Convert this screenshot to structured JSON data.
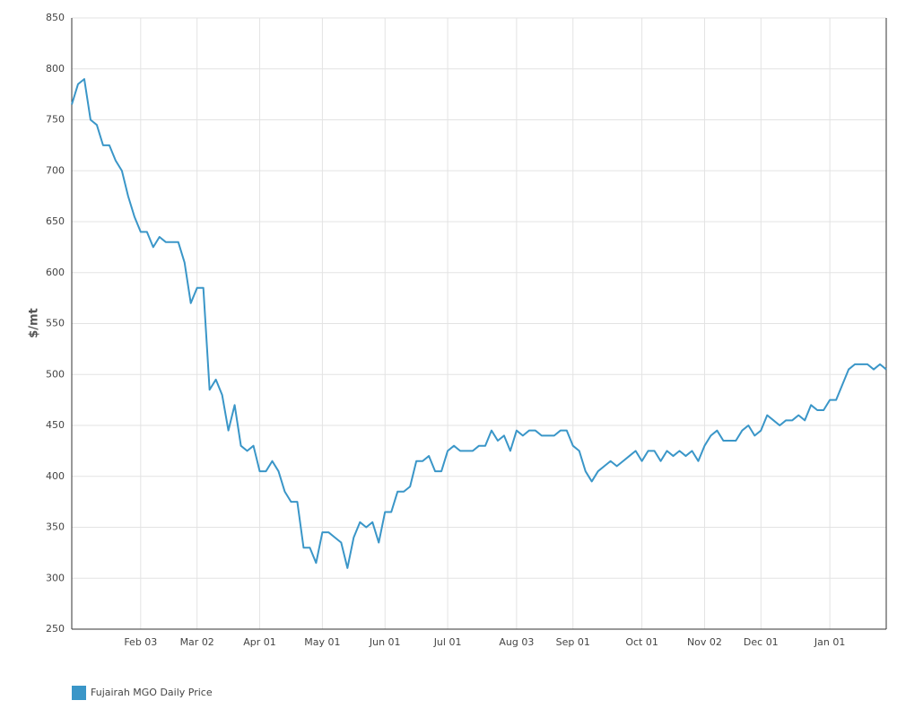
{
  "chart_data": {
    "type": "line",
    "y_label": "$/mt",
    "categories": [
      null,
      null,
      null,
      null,
      null,
      null,
      null,
      null,
      null,
      null,
      null,
      "Feb 03",
      null,
      null,
      null,
      null,
      null,
      null,
      null,
      null,
      "Mar 02",
      null,
      null,
      null,
      null,
      null,
      null,
      null,
      null,
      null,
      "Apr 01",
      null,
      null,
      null,
      null,
      null,
      null,
      null,
      null,
      null,
      "May 01",
      null,
      null,
      null,
      null,
      null,
      null,
      null,
      null,
      null,
      "Jun 01",
      null,
      null,
      null,
      null,
      null,
      null,
      null,
      null,
      null,
      "Jul 01",
      null,
      null,
      null,
      null,
      null,
      null,
      null,
      null,
      null,
      null,
      "Aug 03",
      null,
      null,
      null,
      null,
      null,
      null,
      null,
      null,
      "Sep 01",
      null,
      null,
      null,
      null,
      null,
      null,
      null,
      null,
      null,
      null,
      "Oct 01",
      null,
      null,
      null,
      null,
      null,
      null,
      null,
      null,
      null,
      "Nov 02",
      null,
      null,
      null,
      null,
      null,
      null,
      null,
      null,
      "Dec 01",
      null,
      null,
      null,
      null,
      null,
      null,
      null,
      null,
      null,
      null,
      "Jan 01",
      null,
      null,
      null,
      null,
      null,
      null,
      null,
      null,
      null
    ],
    "series": [
      {
        "name": "Fujairah MGO Daily Price",
        "color": "#3a96c8",
        "values": [
          765,
          785,
          790,
          750,
          745,
          725,
          725,
          710,
          700,
          675,
          655,
          640,
          640,
          625,
          635,
          630,
          630,
          630,
          610,
          570,
          585,
          585,
          485,
          495,
          480,
          445,
          470,
          430,
          425,
          430,
          405,
          405,
          415,
          405,
          385,
          375,
          375,
          330,
          330,
          315,
          345,
          345,
          340,
          335,
          310,
          340,
          355,
          350,
          355,
          335,
          365,
          365,
          385,
          385,
          390,
          415,
          415,
          420,
          405,
          405,
          425,
          430,
          425,
          425,
          425,
          430,
          430,
          445,
          435,
          440,
          425,
          445,
          440,
          445,
          445,
          440,
          440,
          440,
          445,
          445,
          430,
          425,
          405,
          395,
          405,
          410,
          415,
          410,
          415,
          420,
          425,
          415,
          425,
          425,
          415,
          425,
          420,
          425,
          420,
          425,
          415,
          430,
          440,
          445,
          435,
          435,
          435,
          445,
          450,
          440,
          445,
          460,
          455,
          450,
          455,
          455,
          460,
          455,
          470,
          465,
          465,
          475,
          475,
          490,
          505,
          510,
          510,
          510,
          505,
          510,
          505
        ]
      }
    ],
    "ylim": [
      250,
      850
    ],
    "yticks": [
      250,
      300,
      350,
      400,
      450,
      500,
      550,
      600,
      650,
      700,
      750,
      800,
      850
    ],
    "grid": true
  }
}
